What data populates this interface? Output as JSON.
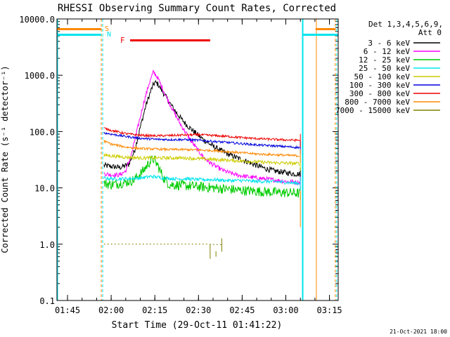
{
  "chart_data": {
    "type": "line",
    "title": "RHESSI Observing Summary Count Rates, Corrected",
    "xlabel": "Start Time (29-Oct-11 01:41:22)",
    "ylabel": "Corrected Count Rate (s⁻¹ detector⁻¹)",
    "xlim": [
      101.37,
      198.0
    ],
    "ylim": [
      0.1,
      10000.0
    ],
    "yscale": "log",
    "x_ticks": [
      {
        "value": 105,
        "label": "01:45"
      },
      {
        "value": 120,
        "label": "02:00"
      },
      {
        "value": 135,
        "label": "02:15"
      },
      {
        "value": 150,
        "label": "02:30"
      },
      {
        "value": 165,
        "label": "02:45"
      },
      {
        "value": 180,
        "label": "03:00"
      },
      {
        "value": 195,
        "label": "03:15"
      }
    ],
    "y_ticks": [
      {
        "value": 10000,
        "label": "10000.0"
      },
      {
        "value": 1000,
        "label": "1000.0"
      },
      {
        "value": 100,
        "label": "100.0"
      },
      {
        "value": 10,
        "label": "10.0"
      },
      {
        "value": 1,
        "label": "1.0"
      },
      {
        "value": 0.1,
        "label": "0.1"
      }
    ],
    "legend": {
      "placement": "top-right",
      "header": [
        "Det 1,3,4,5,6,9,",
        "Att 0"
      ]
    },
    "series": [
      {
        "name": "3 - 6 keV",
        "color": "#000000",
        "points": [
          [
            117.5,
            25
          ],
          [
            120,
            24
          ],
          [
            123,
            23
          ],
          [
            126,
            26
          ],
          [
            128,
            45
          ],
          [
            130,
            120
          ],
          [
            132,
            300
          ],
          [
            134,
            600
          ],
          [
            135,
            750
          ],
          [
            136,
            700
          ],
          [
            138,
            480
          ],
          [
            140,
            330
          ],
          [
            142,
            230
          ],
          [
            144,
            170
          ],
          [
            146,
            130
          ],
          [
            148,
            105
          ],
          [
            150,
            85
          ],
          [
            152,
            70
          ],
          [
            155,
            55
          ],
          [
            158,
            45
          ],
          [
            161,
            38
          ],
          [
            164,
            33
          ],
          [
            167,
            29
          ],
          [
            170,
            25
          ],
          [
            173,
            22
          ],
          [
            176,
            20
          ],
          [
            179,
            19
          ],
          [
            182,
            18
          ],
          [
            185,
            17.5
          ]
        ]
      },
      {
        "name": "6 - 12 keV",
        "color": "#ff00ff",
        "points": [
          [
            117.5,
            18
          ],
          [
            120,
            17
          ],
          [
            123,
            17
          ],
          [
            125,
            20
          ],
          [
            127,
            40
          ],
          [
            129,
            110
          ],
          [
            131,
            300
          ],
          [
            133,
            700
          ],
          [
            134.5,
            1150
          ],
          [
            136,
            900
          ],
          [
            138,
            530
          ],
          [
            140,
            320
          ],
          [
            142,
            200
          ],
          [
            144,
            130
          ],
          [
            146,
            90
          ],
          [
            148,
            62
          ],
          [
            150,
            45
          ],
          [
            152,
            34
          ],
          [
            154,
            28
          ],
          [
            156,
            24
          ],
          [
            158,
            21
          ],
          [
            160,
            19
          ],
          [
            163,
            17
          ],
          [
            166,
            16
          ],
          [
            170,
            15
          ],
          [
            175,
            14
          ],
          [
            180,
            13
          ],
          [
            185,
            12.5
          ]
        ]
      },
      {
        "name": "12 - 25 keV",
        "color": "#00cc00",
        "points": [
          [
            117.5,
            12
          ],
          [
            120,
            11.5
          ],
          [
            125,
            12.5
          ],
          [
            128,
            14
          ],
          [
            131,
            20
          ],
          [
            133,
            28
          ],
          [
            134.5,
            33
          ],
          [
            136,
            25
          ],
          [
            138,
            15
          ],
          [
            140,
            11.5
          ],
          [
            145,
            11
          ],
          [
            150,
            10.5
          ],
          [
            155,
            10
          ],
          [
            160,
            9.5
          ],
          [
            165,
            9
          ],
          [
            170,
            8.7
          ],
          [
            175,
            8.4
          ],
          [
            180,
            8.2
          ],
          [
            185,
            8
          ]
        ]
      },
      {
        "name": "25 - 50 keV",
        "color": "#00e5ee",
        "points": [
          [
            117.5,
            15
          ],
          [
            120,
            14.5
          ],
          [
            125,
            14.5
          ],
          [
            130,
            15
          ],
          [
            134,
            16
          ],
          [
            138,
            15
          ],
          [
            142,
            14.5
          ],
          [
            146,
            14.5
          ],
          [
            150,
            14
          ],
          [
            155,
            14
          ],
          [
            160,
            13.5
          ],
          [
            165,
            13.5
          ],
          [
            170,
            13
          ],
          [
            175,
            13
          ],
          [
            180,
            12.5
          ],
          [
            185,
            12
          ]
        ]
      },
      {
        "name": "50 - 100 keV",
        "color": "#cccc00",
        "points": [
          [
            117.5,
            38
          ],
          [
            120,
            37
          ],
          [
            125,
            35
          ],
          [
            130,
            34
          ],
          [
            135,
            34
          ],
          [
            140,
            34
          ],
          [
            145,
            34
          ],
          [
            150,
            33
          ],
          [
            155,
            32
          ],
          [
            160,
            31
          ],
          [
            165,
            30
          ],
          [
            170,
            29
          ],
          [
            175,
            28
          ],
          [
            180,
            27.5
          ],
          [
            185,
            27
          ]
        ]
      },
      {
        "name": "100 - 300 keV",
        "color": "#0000dd",
        "points": [
          [
            117.5,
            95
          ],
          [
            120,
            90
          ],
          [
            125,
            82
          ],
          [
            130,
            76
          ],
          [
            135,
            73
          ],
          [
            140,
            72
          ],
          [
            145,
            72
          ],
          [
            150,
            70
          ],
          [
            155,
            67
          ],
          [
            160,
            64
          ],
          [
            165,
            61
          ],
          [
            170,
            58
          ],
          [
            175,
            56
          ],
          [
            180,
            54
          ],
          [
            185,
            52
          ]
        ]
      },
      {
        "name": "300 - 800 keV",
        "color": "#ee0000",
        "points": [
          [
            117.5,
            115
          ],
          [
            120,
            105
          ],
          [
            125,
            92
          ],
          [
            130,
            86
          ],
          [
            135,
            84
          ],
          [
            140,
            85
          ],
          [
            145,
            87
          ],
          [
            150,
            88
          ],
          [
            155,
            85
          ],
          [
            160,
            82
          ],
          [
            165,
            78
          ],
          [
            170,
            75
          ],
          [
            175,
            73
          ],
          [
            180,
            71
          ],
          [
            185,
            70
          ]
        ]
      },
      {
        "name": "800 - 7000 keV",
        "color": "#ff8800",
        "points": [
          [
            117.5,
            68
          ],
          [
            120,
            60
          ],
          [
            125,
            53
          ],
          [
            130,
            50
          ],
          [
            135,
            49
          ],
          [
            140,
            48
          ],
          [
            145,
            48
          ],
          [
            150,
            47
          ],
          [
            155,
            46
          ],
          [
            160,
            44
          ],
          [
            165,
            42
          ],
          [
            170,
            40
          ],
          [
            175,
            39
          ],
          [
            180,
            38
          ],
          [
            185,
            37
          ]
        ]
      },
      {
        "name": "7000 - 15000 keV",
        "color": "#808000",
        "points": [
          [
            117.5,
            1.0
          ],
          [
            123,
            1.0
          ],
          [
            145,
            1.0
          ],
          [
            153,
            1.0
          ],
          [
            158,
            0.98
          ]
        ]
      }
    ],
    "attenuator_states": {
      "S": {
        "label": "S",
        "color": "#ff8800"
      },
      "N": {
        "label": "N",
        "color": "#00e5ee"
      },
      "F": {
        "label": "F",
        "color": "#ee0000"
      }
    }
  }
}
